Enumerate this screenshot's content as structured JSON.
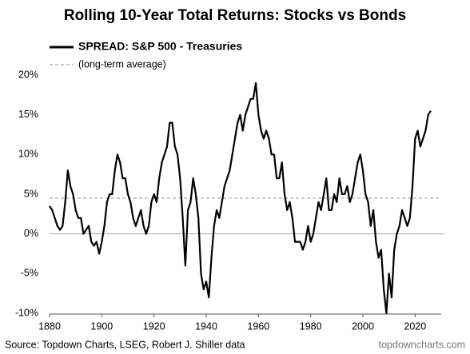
{
  "chart_data": {
    "type": "line",
    "title": "Rolling 10-Year Total Returns: Stocks vs Bonds",
    "source": "Source: Topdown Charts, LSEG, Robert J. Shiller data",
    "watermark": "topdowncharts.com",
    "xlim": [
      1880,
      2030
    ],
    "xticks": [
      1880,
      1900,
      1920,
      1940,
      1960,
      1980,
      2000,
      2020
    ],
    "ylim": [
      -10,
      20
    ],
    "yticks": [
      {
        "value": -10,
        "label": "-10%"
      },
      {
        "value": -5,
        "label": "-5%"
      },
      {
        "value": 0,
        "label": "0%"
      },
      {
        "value": 5,
        "label": "5%"
      },
      {
        "value": 10,
        "label": "10%"
      },
      {
        "value": 15,
        "label": "15%"
      },
      {
        "value": 20,
        "label": "20%"
      }
    ],
    "x": [
      1880,
      1881,
      1882,
      1883,
      1884,
      1885,
      1886,
      1887,
      1888,
      1889,
      1890,
      1891,
      1892,
      1893,
      1894,
      1895,
      1896,
      1897,
      1898,
      1899,
      1900,
      1901,
      1902,
      1903,
      1904,
      1905,
      1906,
      1907,
      1908,
      1909,
      1910,
      1911,
      1912,
      1913,
      1914,
      1915,
      1916,
      1917,
      1918,
      1919,
      1920,
      1921,
      1922,
      1923,
      1924,
      1925,
      1926,
      1927,
      1928,
      1929,
      1930,
      1931,
      1932,
      1933,
      1934,
      1935,
      1936,
      1937,
      1938,
      1939,
      1940,
      1941,
      1942,
      1943,
      1944,
      1945,
      1946,
      1947,
      1948,
      1949,
      1950,
      1951,
      1952,
      1953,
      1954,
      1955,
      1956,
      1957,
      1958,
      1959,
      1960,
      1961,
      1962,
      1963,
      1964,
      1965,
      1966,
      1967,
      1968,
      1969,
      1970,
      1971,
      1972,
      1973,
      1974,
      1975,
      1976,
      1977,
      1978,
      1979,
      1980,
      1981,
      1982,
      1983,
      1984,
      1985,
      1986,
      1987,
      1988,
      1989,
      1990,
      1991,
      1992,
      1993,
      1994,
      1995,
      1996,
      1997,
      1998,
      1999,
      2000,
      2001,
      2002,
      2003,
      2004,
      2005,
      2006,
      2007,
      2008,
      2009,
      2010,
      2011,
      2012,
      2013,
      2014,
      2015,
      2016,
      2017,
      2018,
      2019,
      2020,
      2021,
      2022,
      2023,
      2024,
      2025,
      2026
    ],
    "series": [
      {
        "name": "SPREAD: S&P 500 - Treasuries",
        "color": "#000000",
        "values": [
          3.5,
          3,
          2,
          1,
          0.5,
          1,
          4,
          8,
          6,
          5,
          3,
          2,
          2,
          0,
          0.5,
          1,
          -1,
          -1.5,
          -1,
          -2.5,
          -1,
          1,
          4,
          5,
          5,
          8,
          10,
          9,
          7,
          7,
          5,
          4,
          2,
          1,
          2,
          3,
          1,
          0,
          1,
          4,
          5,
          4,
          7,
          9,
          10,
          11,
          14,
          14,
          11,
          10,
          7,
          2,
          -4,
          3,
          4,
          7,
          5,
          2,
          -5,
          -7,
          -6,
          -8,
          -3,
          1,
          3,
          2,
          4,
          6,
          7,
          8,
          10,
          12,
          14,
          15,
          13,
          15,
          16,
          17,
          17,
          19,
          15,
          13,
          12,
          13,
          12,
          10,
          10,
          7,
          7,
          9,
          5,
          3,
          4,
          2,
          -1,
          -1,
          -1,
          -2,
          -1,
          1,
          -1,
          0,
          2,
          4,
          3,
          5,
          7,
          3,
          3,
          5,
          4,
          7,
          5,
          5,
          6,
          4,
          5,
          7,
          9,
          10,
          8,
          5,
          4,
          1,
          3,
          -1,
          -3,
          -2,
          -7,
          -10,
          -5,
          -8,
          -2,
          0,
          1,
          3,
          2,
          1,
          2,
          6,
          12,
          13,
          11,
          12,
          13,
          15,
          15.5
        ]
      }
    ],
    "reference_line": {
      "name": "(long-term average)",
      "value": 4.5,
      "color": "#999999"
    }
  }
}
